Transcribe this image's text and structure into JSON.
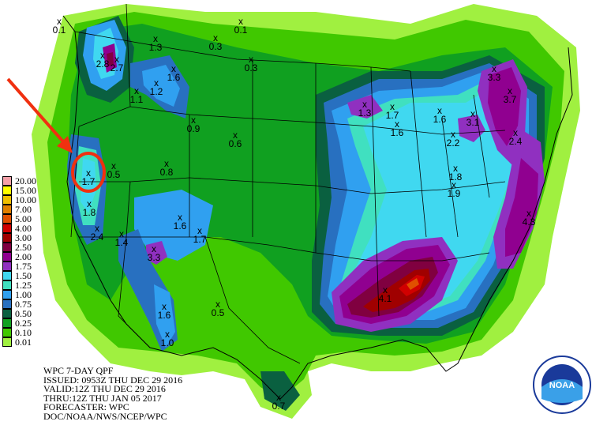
{
  "legend": {
    "items": [
      {
        "label": "20.00",
        "color": "#f5a0a8"
      },
      {
        "label": "15.00",
        "color": "#ffff00"
      },
      {
        "label": "10.00",
        "color": "#f0c000"
      },
      {
        "label": "7.00",
        "color": "#e08000"
      },
      {
        "label": "5.00",
        "color": "#e05000"
      },
      {
        "label": "4.00",
        "color": "#d00000"
      },
      {
        "label": "3.00",
        "color": "#a00000"
      },
      {
        "label": "2.50",
        "color": "#800040"
      },
      {
        "label": "2.00",
        "color": "#900090"
      },
      {
        "label": "1.75",
        "color": "#9030c0"
      },
      {
        "label": "1.50",
        "color": "#40d8f0"
      },
      {
        "label": "1.25",
        "color": "#40e0c0"
      },
      {
        "label": "1.00",
        "color": "#30a0f0"
      },
      {
        "label": "0.75",
        "color": "#2870c0"
      },
      {
        "label": "0.50",
        "color": "#0a6040"
      },
      {
        "label": "0.25",
        "color": "#10a020"
      },
      {
        "label": "0.10",
        "color": "#40c800"
      },
      {
        "label": "0.01",
        "color": "#a0f040"
      }
    ]
  },
  "info": {
    "line1": "WPC 7-DAY QPF",
    "line2": "ISSUED: 0953Z THU DEC 29 2016",
    "line3": "VALID:12Z THU DEC 29 2016",
    "line4": "THRU:12Z THU JAN 05 2017",
    "line5": "FORECASTER: WPC",
    "line6": "DOC/NOAA/NWS/NCEP/WPC"
  },
  "points": [
    {
      "label": "0.1",
      "mark": "x"
    },
    {
      "label": "1.3",
      "mark": "x"
    },
    {
      "label": "0.1",
      "mark": "x"
    },
    {
      "label": "0.3",
      "mark": "x"
    },
    {
      "label": "0.3",
      "mark": "x"
    },
    {
      "label": "2.8",
      "mark": "x"
    },
    {
      "label": "2.7",
      "mark": "x"
    },
    {
      "label": "1.6",
      "mark": "x"
    },
    {
      "label": "1.2",
      "mark": "x"
    },
    {
      "label": "1.1",
      "mark": "x"
    },
    {
      "label": "0.9",
      "mark": "x"
    },
    {
      "label": "0.6",
      "mark": "x"
    },
    {
      "label": "0.5",
      "mark": "x"
    },
    {
      "label": "1.7",
      "mark": "x"
    },
    {
      "label": "0.8",
      "mark": "x"
    },
    {
      "label": "1.8",
      "mark": "x"
    },
    {
      "label": "2.4",
      "mark": "x"
    },
    {
      "label": "1.4",
      "mark": "x"
    },
    {
      "label": "1.6",
      "mark": "x"
    },
    {
      "label": "1.7",
      "mark": "x"
    },
    {
      "label": "3.3",
      "mark": "x"
    },
    {
      "label": "1.6",
      "mark": "x"
    },
    {
      "label": "1.0",
      "mark": "x"
    },
    {
      "label": "0.5",
      "mark": "x"
    },
    {
      "label": "0.7",
      "mark": "x"
    },
    {
      "label": "1.3",
      "mark": "x"
    },
    {
      "label": "1.7",
      "mark": "x"
    },
    {
      "label": "1.6",
      "mark": "x"
    },
    {
      "label": "1.6",
      "mark": "x"
    },
    {
      "label": "3.1",
      "mark": "x"
    },
    {
      "label": "2.2",
      "mark": "x"
    },
    {
      "label": "1.8",
      "mark": "x"
    },
    {
      "label": "1.9",
      "mark": "x"
    },
    {
      "label": "3.3",
      "mark": "x"
    },
    {
      "label": "3.7",
      "mark": "x"
    },
    {
      "label": "2.4",
      "mark": "x"
    },
    {
      "label": "4.3",
      "mark": "x"
    },
    {
      "label": "4.1",
      "mark": "x"
    }
  ],
  "logo": {
    "text": "NOAA"
  },
  "annotation": {
    "arrow_color": "#f03010",
    "circle_color": "#f03010"
  }
}
